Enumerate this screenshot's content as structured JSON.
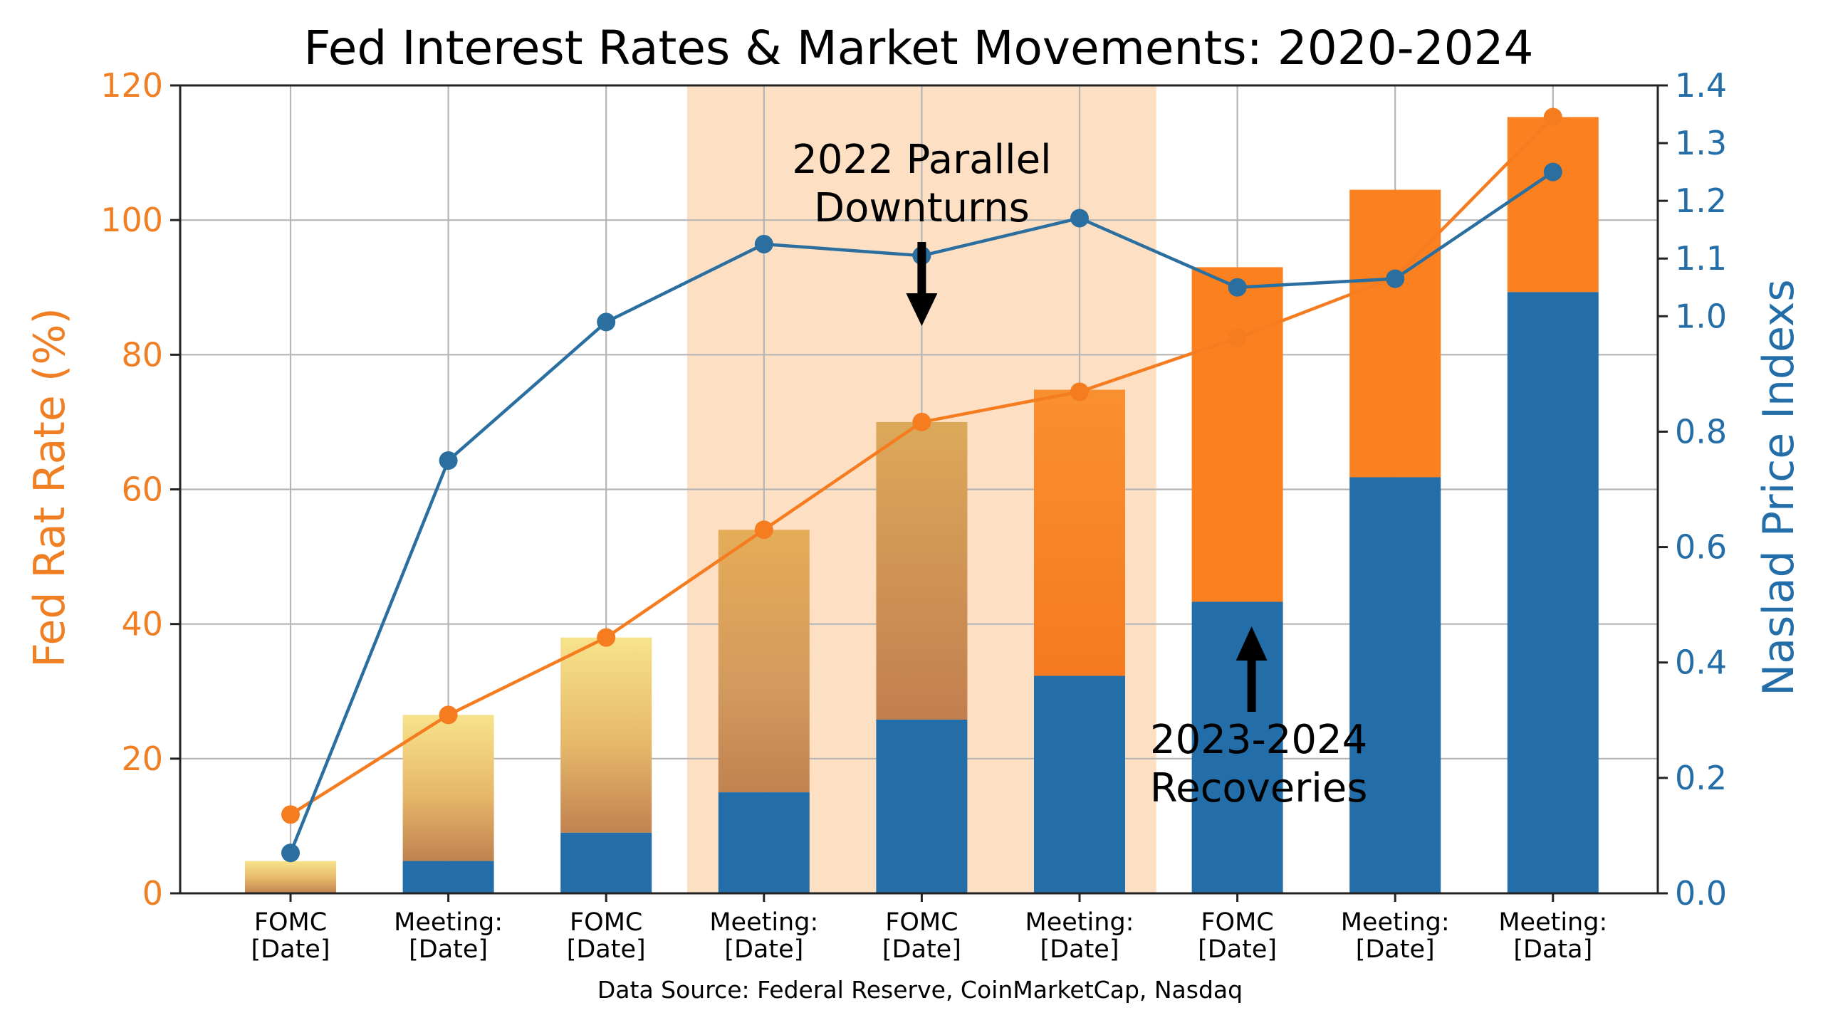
{
  "chart_data": {
    "type": "bar",
    "title": "Fed Interest Rates & Market Movements: 2020-2024",
    "ylabel_left": "Fed Rat Rate (%)",
    "ylabel_right": "Naslad Price  Indexs",
    "source": "Data Source: Federal Reserve, CoinMarketCap, Nasdaq",
    "categories": [
      [
        "FOMC",
        "[Date]"
      ],
      [
        "Meeting:",
        "[Date]"
      ],
      [
        "FOMC",
        "[Date]"
      ],
      [
        "Meeting:",
        "[Date]"
      ],
      [
        "FOMC",
        "[Date]"
      ],
      [
        "Meeting:",
        "[Date]"
      ],
      [
        "FOMC",
        "[Date]"
      ],
      [
        "Meeting:",
        "[Date]"
      ],
      [
        "Meeting:",
        "[Data]"
      ]
    ],
    "ylim_left": [
      0,
      120
    ],
    "yticks_left": [
      0,
      20,
      40,
      60,
      80,
      100,
      120
    ],
    "ylim_right": [
      0,
      1.4
    ],
    "yticks_right": [
      "0.0",
      "0.2",
      "0.4",
      "0.6",
      "0.8",
      "1.0",
      "1.1",
      "1.2",
      "1.3",
      "1.4"
    ],
    "yticks_right_values": [
      0.0,
      0.2,
      0.4,
      0.6,
      0.8,
      1.0,
      1.1,
      1.2,
      1.3,
      1.4
    ],
    "bars": {
      "total": [
        4.8,
        26.5,
        38,
        54,
        70,
        74.8,
        93,
        104.5,
        115.3
      ],
      "blue_base": [
        0,
        4.8,
        9,
        15,
        25.8,
        32.3,
        43.3,
        61.8,
        89.3
      ]
    },
    "series": [
      {
        "name": "",
        "axis": "left",
        "color": "#f57c1f",
        "values": [
          11.7,
          26.5,
          38,
          54,
          70,
          74.5,
          82.5,
          91.5,
          115.3
        ]
      },
      {
        "name": "",
        "axis": "right",
        "color": "#2a6f9f",
        "values": [
          0.07,
          0.75,
          0.99,
          1.125,
          1.105,
          1.17,
          1.05,
          1.065,
          1.25
        ]
      }
    ],
    "shaded_region": {
      "from_index": 3,
      "to_index": 5
    },
    "annotations": [
      {
        "lines": [
          "2022 Parallel",
          "Downturns"
        ],
        "category_index": 4,
        "arrow": "down"
      },
      {
        "lines": [
          "2023-2024",
          "Recoveries"
        ],
        "category_index": 6,
        "arrow": "up"
      }
    ],
    "grid": true,
    "colors": {
      "fed_orange": "#f07f24",
      "nasdaq_blue": "#236ea8",
      "bar_orange": "#fb8120",
      "shade": "#fde0c4",
      "gold_light": "#f7e38c",
      "gold_mid": "#e0ad5c",
      "gold_dark": "#c58a53"
    }
  }
}
